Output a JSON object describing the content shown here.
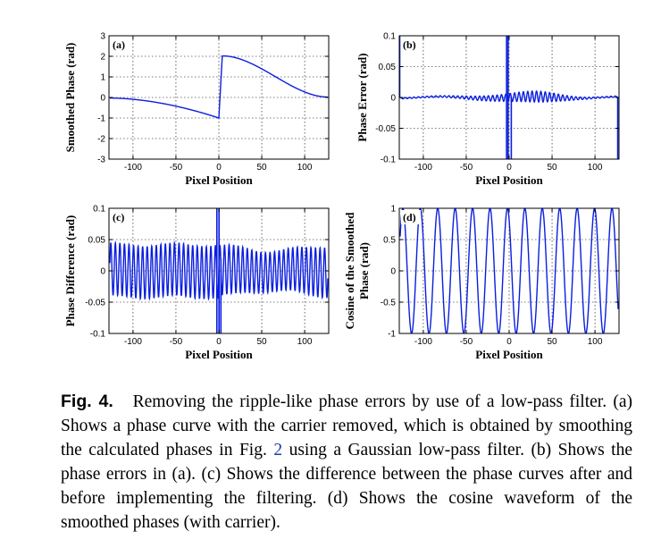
{
  "figure": {
    "panels": [
      {
        "id": "a",
        "label": "(a)",
        "xlabel": "Pixel Position",
        "ylabel": [
          "Smoothed Phase (rad)"
        ],
        "xticks": [
          "-100",
          "-50",
          "0",
          "50",
          "100"
        ],
        "yticks": [
          "3",
          "2",
          "1",
          "0",
          "-1",
          "-2",
          "-3"
        ]
      },
      {
        "id": "b",
        "label": "(b)",
        "xlabel": "Pixel Position",
        "ylabel": [
          "Phase Error (rad)"
        ],
        "xticks": [
          "-100",
          "-50",
          "0",
          "50",
          "100"
        ],
        "yticks": [
          "0.1",
          "0.05",
          "0",
          "-0.05",
          "-0.1"
        ]
      },
      {
        "id": "c",
        "label": "(c)",
        "xlabel": "Pixel Position",
        "ylabel": [
          "Phase Difference (rad)"
        ],
        "xticks": [
          "-100",
          "-50",
          "0",
          "50",
          "100"
        ],
        "yticks": [
          "0.1",
          "0.05",
          "0",
          "-0.05",
          "-0.1"
        ]
      },
      {
        "id": "d",
        "label": "(d)",
        "xlabel": "Pixel Position",
        "ylabel": [
          "Cosine of the Smoothed",
          "Phase (rad)"
        ],
        "xticks": [
          "-100",
          "-50",
          "0",
          "50",
          "100"
        ],
        "yticks": [
          "1",
          "0.5",
          "0",
          "-0.5",
          "-1"
        ]
      }
    ]
  },
  "chart_data": [
    {
      "type": "line",
      "label": "(a)",
      "xlabel": "Pixel Position",
      "ylabel": "Smoothed Phase (rad)",
      "xlim": [
        -128,
        128
      ],
      "ylim": [
        -3,
        3
      ],
      "grid": true,
      "series": [
        {
          "x": [
            -127,
            -100,
            -75,
            -50,
            -25,
            -1,
            1,
            4,
            25,
            50,
            75,
            100,
            127
          ],
          "y": [
            0,
            -0.05,
            -0.2,
            -0.4,
            -0.7,
            -1,
            0.5,
            2,
            1.7,
            1.2,
            0.7,
            0.25,
            0.02
          ]
        }
      ]
    },
    {
      "type": "line",
      "label": "(b)",
      "xlabel": "Pixel Position",
      "ylabel": "Phase Error (rad)",
      "xlim": [
        -128,
        128
      ],
      "ylim": [
        -0.1,
        0.1
      ],
      "grid": true,
      "series": [
        {
          "x": [
            -128,
            -120,
            -100,
            -80,
            -60,
            -40,
            -20,
            -5,
            5,
            20,
            40,
            60,
            80,
            100,
            120,
            128
          ],
          "y": [
            0.1,
            0,
            0,
            0.001,
            0,
            -0.002,
            0.002,
            0.1,
            -0.1,
            0.004,
            0.006,
            -0.004,
            0.003,
            0,
            0,
            -0.1
          ]
        }
      ]
    },
    {
      "type": "line",
      "label": "(c)",
      "xlabel": "Pixel Position",
      "ylabel": "Phase Difference (rad)",
      "xlim": [
        -128,
        128
      ],
      "ylim": [
        -0.1,
        0.1
      ],
      "grid": true,
      "series": [
        {
          "x": [
            -120,
            -60,
            -2,
            2,
            60,
            120
          ],
          "y": [
            0.04,
            -0.04,
            0.1,
            -0.1,
            0.035,
            -0.04
          ]
        }
      ]
    },
    {
      "type": "line",
      "label": "(d)",
      "xlabel": "Pixel Position",
      "ylabel": "Cosine of the Smoothed Phase (rad)",
      "xlim": [
        -128,
        128
      ],
      "ylim": [
        -1,
        1
      ],
      "grid": true,
      "series": [
        {
          "x": [
            -120,
            -100,
            -80,
            -60,
            -40,
            -20,
            0,
            20,
            40,
            60,
            80,
            100,
            120
          ],
          "y": [
            0.5,
            -1,
            1,
            -1,
            1,
            -1,
            1,
            -1,
            1,
            -1,
            1,
            -1,
            0
          ]
        }
      ]
    }
  ],
  "caption": {
    "fig_label": "Fig. 4.",
    "text_before_ref": "Removing the ripple-like phase errors by use of a low-pass filter. (a) Shows a phase curve with the carrier removed, which is obtained by smoothing the calculated phases in Fig. ",
    "ref": "2",
    "text_after_ref": " using a Gaussian low-pass filter. (b) Shows the phase errors in (a). (c) Shows the difference between the phase curves after and before implementing the filtering. (d) Shows the cosine waveform of the smoothed phases (with carrier)."
  }
}
